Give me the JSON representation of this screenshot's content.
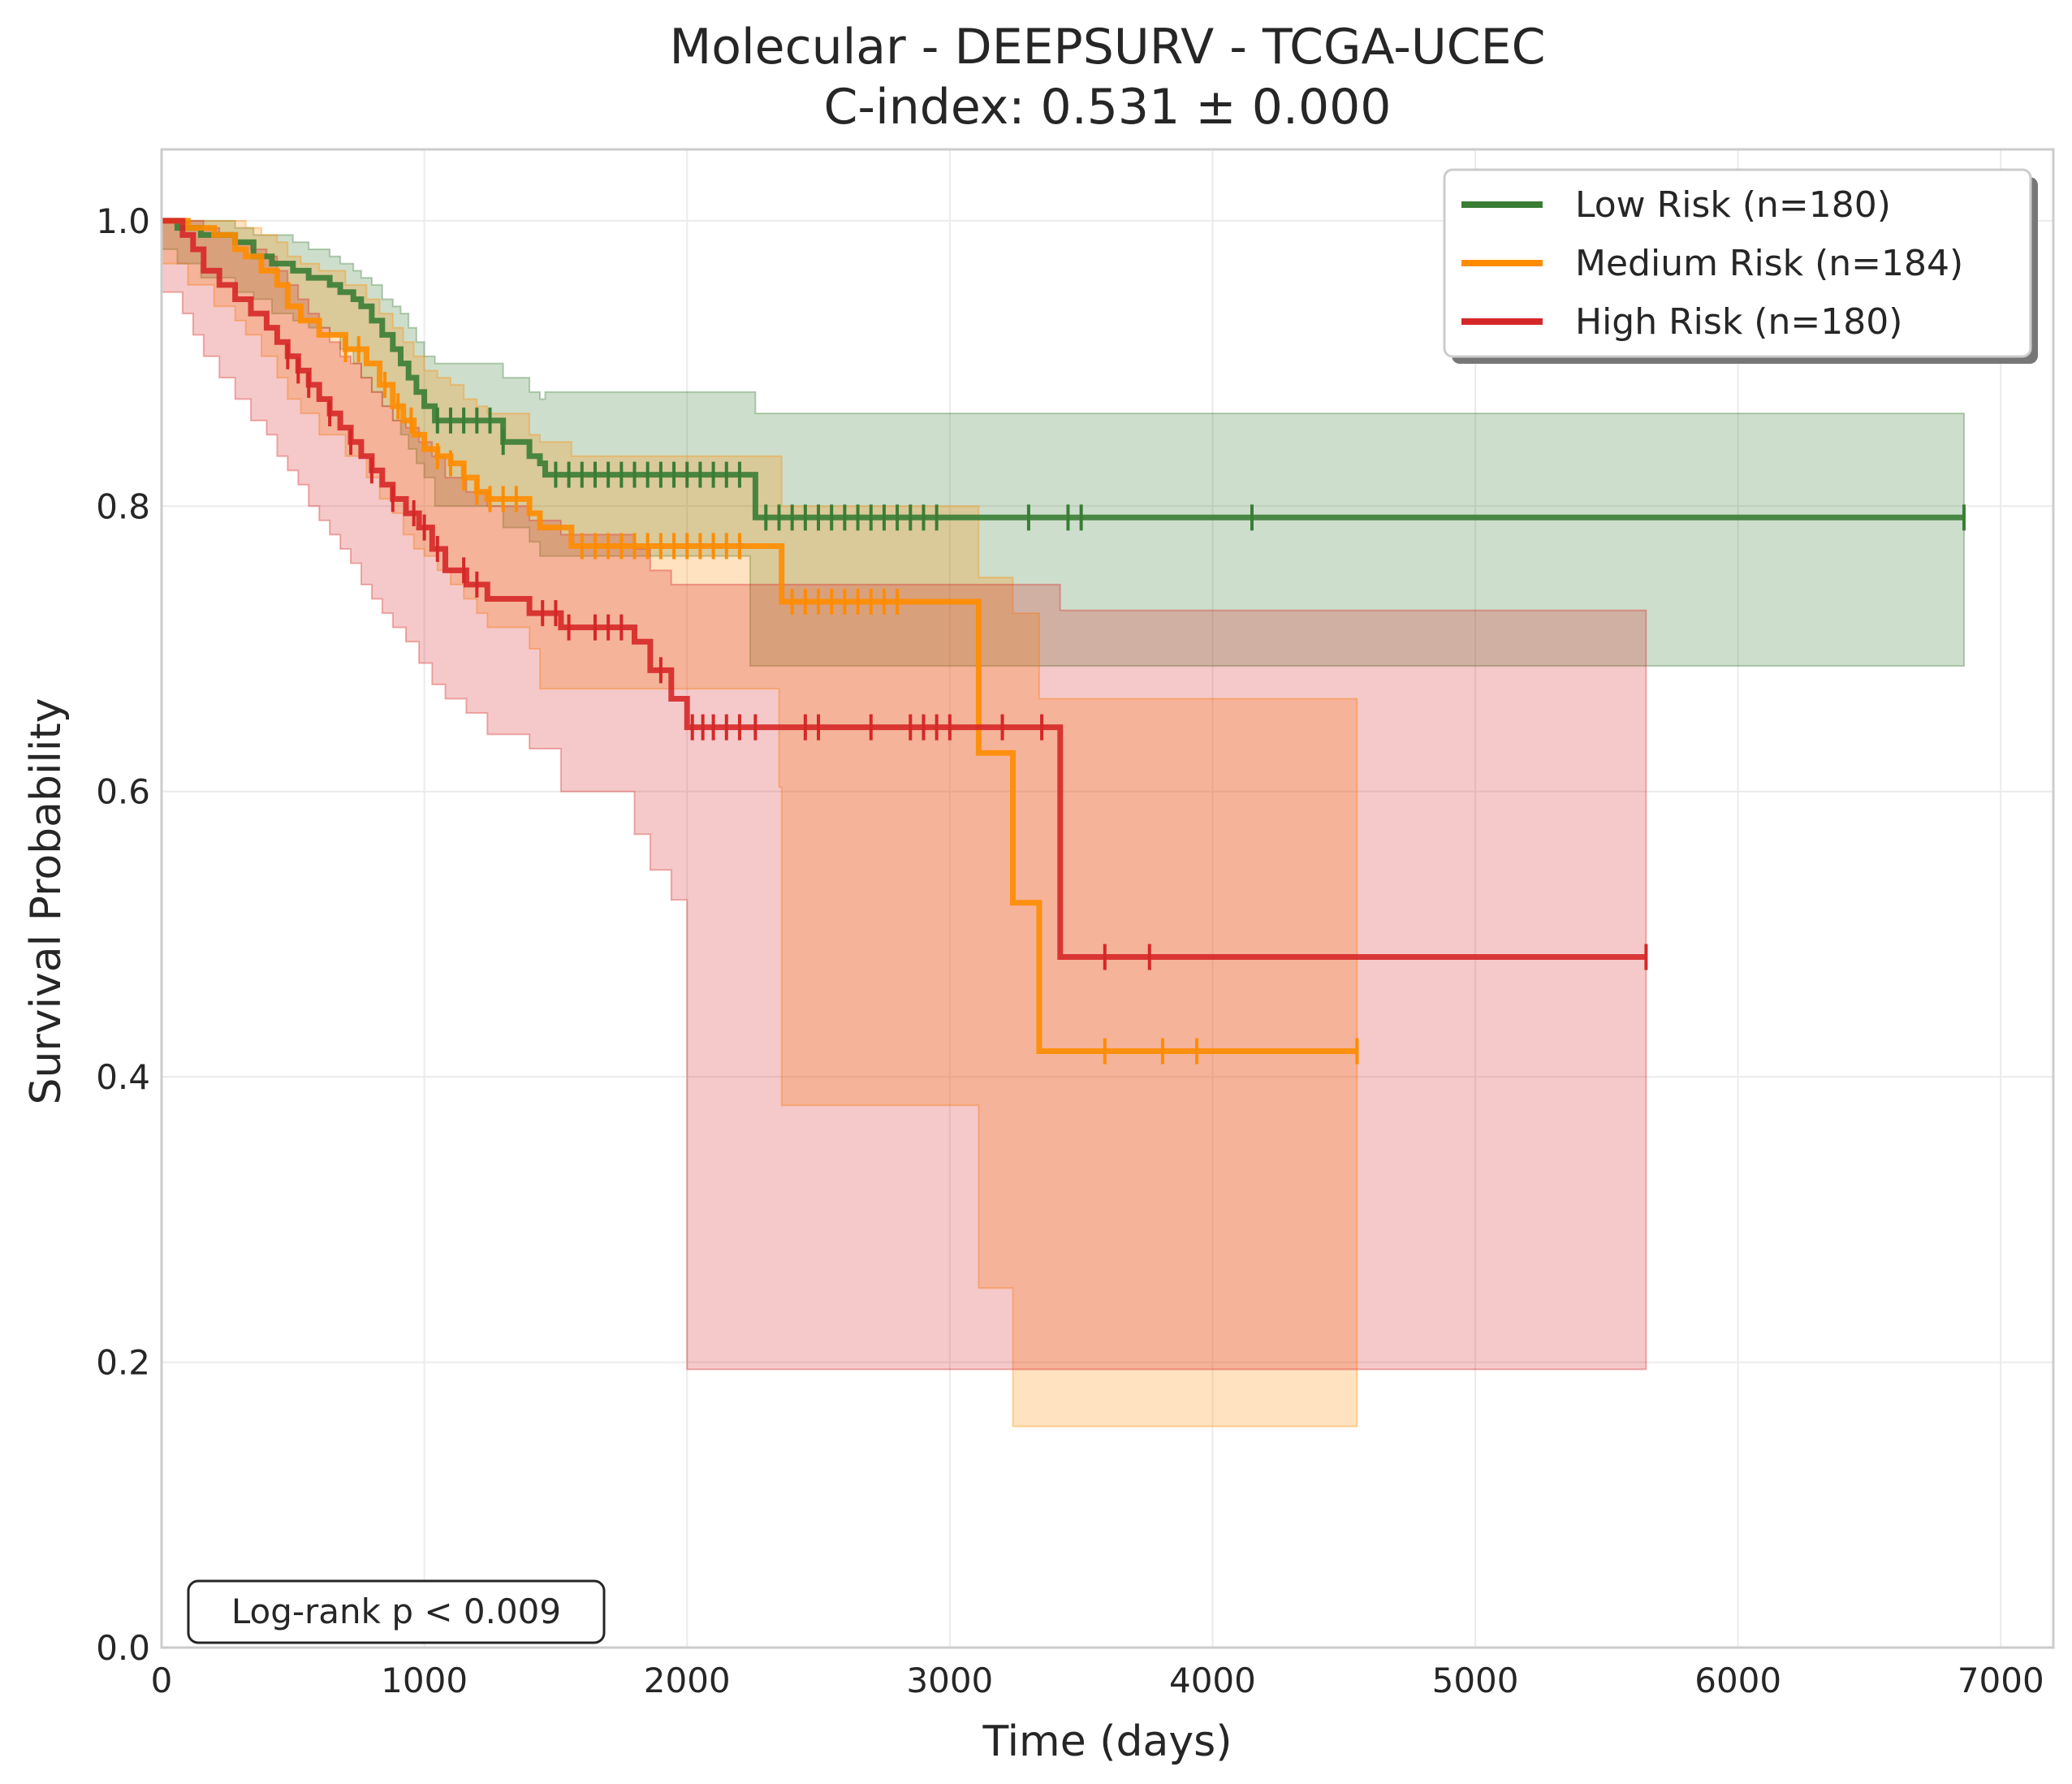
{
  "chart_data": {
    "type": "line",
    "subtype": "kaplan-meier",
    "title": "Molecular - DEEPSURV - TCGA-UCEC",
    "subtitle": "C-index: 0.531 ± 0.000",
    "xlabel": "Time (days)",
    "ylabel": "Survival Probability",
    "xlim": [
      0,
      7200
    ],
    "ylim": [
      0,
      1.05
    ],
    "xticks": [
      0,
      1000,
      2000,
      3000,
      4000,
      5000,
      6000,
      7000
    ],
    "yticks": [
      0.0,
      0.2,
      0.4,
      0.6,
      0.8,
      1.0
    ],
    "grid": true,
    "legend_position": "top-right",
    "annotation": "Log-rank p < 0.009",
    "series": [
      {
        "name": "Low Risk (n=180)",
        "color": "#3a7d35",
        "x": [
          0,
          60,
          150,
          280,
          350,
          420,
          500,
          560,
          640,
          680,
          730,
          760,
          800,
          840,
          880,
          910,
          940,
          970,
          1000,
          1040,
          1300,
          1400,
          1440,
          1460,
          2240,
          2260,
          6860
        ],
        "y": [
          1.0,
          0.995,
          0.99,
          0.985,
          0.975,
          0.97,
          0.965,
          0.96,
          0.955,
          0.95,
          0.945,
          0.94,
          0.93,
          0.92,
          0.91,
          0.9,
          0.89,
          0.88,
          0.87,
          0.86,
          0.845,
          0.835,
          0.83,
          0.822,
          0.822,
          0.792,
          0.792
        ],
        "band_upper": [
          1.0,
          1.0,
          1.0,
          0.995,
          0.99,
          0.99,
          0.985,
          0.98,
          0.975,
          0.97,
          0.965,
          0.96,
          0.955,
          0.945,
          0.94,
          0.935,
          0.925,
          0.915,
          0.905,
          0.9,
          0.89,
          0.88,
          0.875,
          0.88,
          0.88,
          0.865,
          0.865
        ],
        "band_lower": [
          1.0,
          0.98,
          0.97,
          0.96,
          0.95,
          0.945,
          0.935,
          0.93,
          0.925,
          0.92,
          0.91,
          0.9,
          0.89,
          0.88,
          0.87,
          0.86,
          0.85,
          0.84,
          0.83,
          0.82,
          0.8,
          0.785,
          0.775,
          0.765,
          0.765,
          0.688,
          0.688
        ],
        "censor_times": [
          1050,
          1100,
          1150,
          1200,
          1250,
          1300,
          1500,
          1550,
          1600,
          1650,
          1700,
          1750,
          1800,
          1850,
          1900,
          1950,
          2000,
          2050,
          2100,
          2150,
          2200,
          2300,
          2350,
          2400,
          2450,
          2500,
          2550,
          2600,
          2650,
          2700,
          2750,
          2800,
          2850,
          2900,
          2950,
          3300,
          3450,
          3500,
          4150,
          6860
        ]
      },
      {
        "name": "Medium Risk (n=184)",
        "color": "#ff8c00",
        "x": [
          0,
          100,
          200,
          280,
          320,
          380,
          440,
          480,
          530,
          600,
          700,
          780,
          830,
          880,
          920,
          960,
          1000,
          1050,
          1100,
          1150,
          1200,
          1240,
          1400,
          1440,
          1560,
          2350,
          2360,
          3110,
          3240,
          3340,
          4550
        ],
        "y": [
          1.0,
          0.995,
          0.99,
          0.98,
          0.975,
          0.965,
          0.955,
          0.94,
          0.93,
          0.92,
          0.91,
          0.9,
          0.885,
          0.87,
          0.86,
          0.85,
          0.84,
          0.835,
          0.83,
          0.82,
          0.81,
          0.805,
          0.795,
          0.785,
          0.772,
          0.772,
          0.733,
          0.627,
          0.522,
          0.418,
          0.418
        ],
        "band_upper": [
          1.0,
          1.0,
          1.0,
          1.0,
          0.995,
          0.99,
          0.985,
          0.975,
          0.97,
          0.965,
          0.955,
          0.945,
          0.935,
          0.925,
          0.915,
          0.905,
          0.895,
          0.89,
          0.885,
          0.875,
          0.87,
          0.865,
          0.85,
          0.845,
          0.835,
          0.835,
          0.8,
          0.75,
          0.725,
          0.665,
          0.665
        ],
        "band_lower": [
          1.0,
          0.97,
          0.955,
          0.94,
          0.93,
          0.92,
          0.905,
          0.89,
          0.875,
          0.865,
          0.85,
          0.835,
          0.82,
          0.805,
          0.795,
          0.78,
          0.77,
          0.765,
          0.755,
          0.745,
          0.735,
          0.725,
          0.715,
          0.7,
          0.672,
          0.672,
          0.603,
          0.38,
          0.252,
          0.155,
          0.155
        ],
        "censor_times": [
          700,
          750,
          850,
          900,
          950,
          1050,
          1100,
          1150,
          1200,
          1250,
          1300,
          1350,
          1600,
          1650,
          1700,
          1750,
          1800,
          1850,
          1900,
          1950,
          2000,
          2050,
          2100,
          2150,
          2200,
          2400,
          2450,
          2500,
          2550,
          2600,
          2650,
          2700,
          2750,
          2800,
          3590,
          3810,
          3940,
          4550
        ]
      },
      {
        "name": "High Risk (n=180)",
        "color": "#d62728",
        "x": [
          0,
          80,
          120,
          160,
          220,
          280,
          340,
          400,
          440,
          480,
          520,
          560,
          600,
          640,
          680,
          720,
          760,
          800,
          840,
          880,
          930,
          980,
          1030,
          1080,
          1160,
          1240,
          1400,
          1520,
          1800,
          1860,
          1940,
          2000,
          3420,
          5650
        ],
        "y": [
          1.0,
          0.99,
          0.98,
          0.965,
          0.955,
          0.945,
          0.935,
          0.925,
          0.915,
          0.905,
          0.895,
          0.885,
          0.875,
          0.865,
          0.855,
          0.845,
          0.835,
          0.825,
          0.815,
          0.805,
          0.795,
          0.785,
          0.77,
          0.755,
          0.745,
          0.735,
          0.725,
          0.715,
          0.705,
          0.685,
          0.665,
          0.645,
          0.484,
          0.484
        ],
        "band_upper": [
          1.0,
          1.0,
          1.0,
          0.995,
          0.99,
          0.985,
          0.98,
          0.975,
          0.965,
          0.955,
          0.945,
          0.935,
          0.925,
          0.915,
          0.905,
          0.9,
          0.89,
          0.88,
          0.87,
          0.86,
          0.855,
          0.845,
          0.835,
          0.82,
          0.81,
          0.8,
          0.79,
          0.78,
          0.77,
          0.755,
          0.745,
          0.745,
          0.727,
          0.727
        ],
        "band_lower": [
          1.0,
          0.95,
          0.935,
          0.92,
          0.905,
          0.89,
          0.875,
          0.86,
          0.85,
          0.835,
          0.825,
          0.815,
          0.8,
          0.79,
          0.78,
          0.77,
          0.76,
          0.745,
          0.735,
          0.725,
          0.715,
          0.705,
          0.69,
          0.675,
          0.665,
          0.655,
          0.64,
          0.63,
          0.6,
          0.57,
          0.545,
          0.524,
          0.195,
          0.195
        ],
        "censor_times": [
          480,
          520,
          560,
          640,
          720,
          800,
          880,
          960,
          1000,
          1050,
          1150,
          1200,
          1450,
          1500,
          1550,
          1650,
          1700,
          1750,
          1900,
          2020,
          2060,
          2100,
          2150,
          2200,
          2260,
          2450,
          2500,
          2700,
          2850,
          2900,
          2950,
          3000,
          3200,
          3350,
          3590,
          3760,
          5650
        ]
      }
    ]
  }
}
